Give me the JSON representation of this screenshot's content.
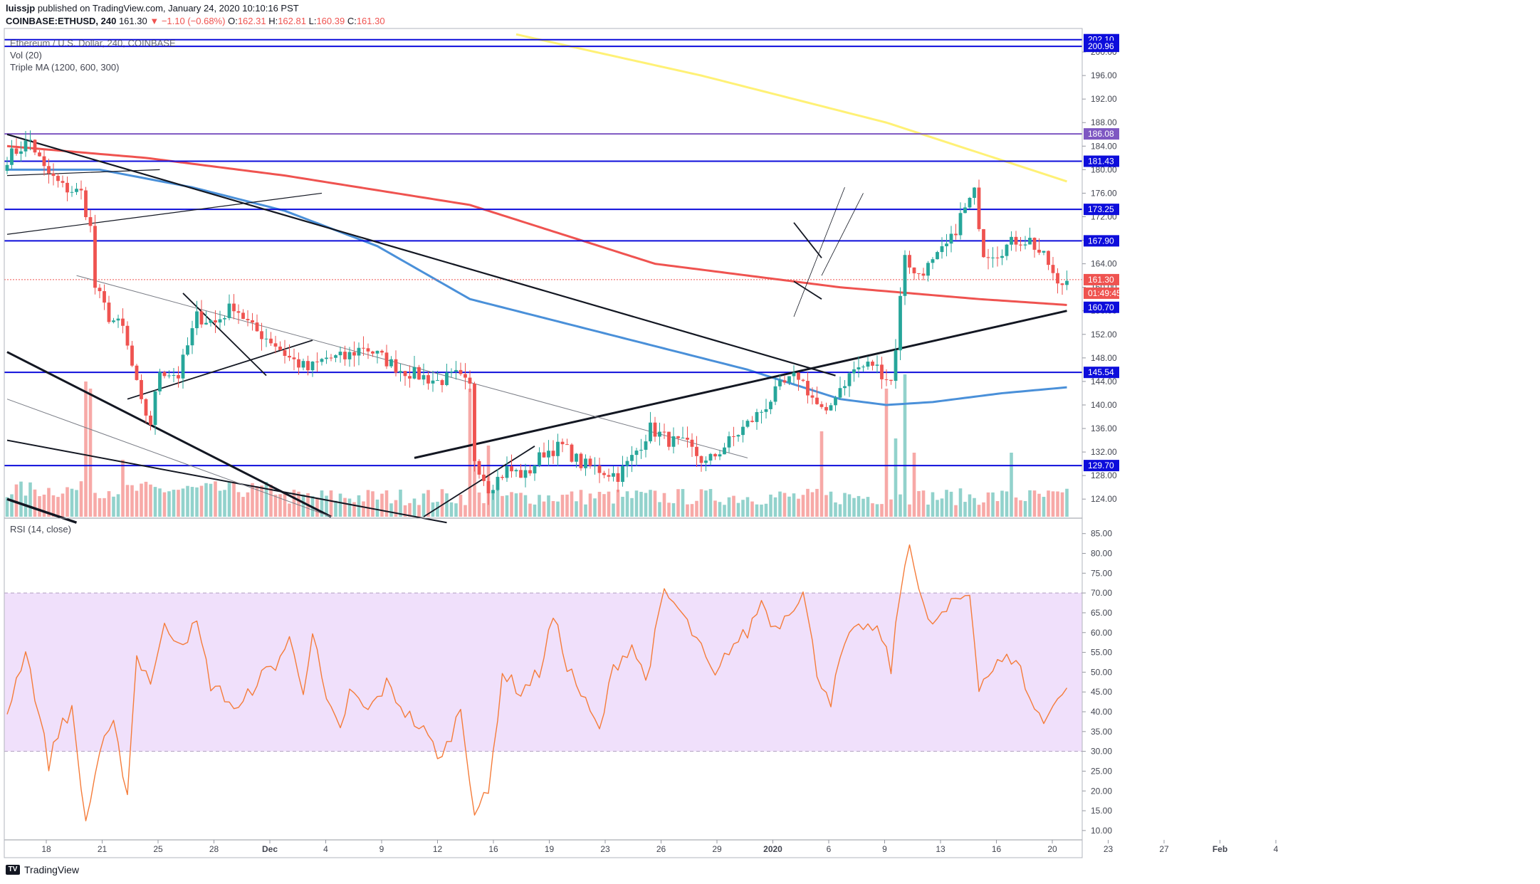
{
  "header": {
    "publisher": "luissjp",
    "published_text": "published on TradingView.com, January 24, 2020 10:10:16 PST",
    "symbol": "COINBASE:ETHUSD, 240",
    "price": "161.30",
    "change": "−1.10 (−0.68%)",
    "open_label": "O:",
    "open": "162.31",
    "high_label": "H:",
    "high": "162.81",
    "low_label": "L:",
    "low": "160.39",
    "close_label": "C:",
    "close": "161.30"
  },
  "legend": {
    "title": "Ethereum / U.S. Dollar, 240, COINBASE",
    "vol": "Vol (20)",
    "ma": "Triple MA (1200, 600, 300)"
  },
  "rsi": {
    "title": "RSI (14, close)"
  },
  "footer": {
    "brand": "TradingView"
  },
  "colors": {
    "up": "#26a69a",
    "down": "#ef5350",
    "hline": "#0d0ddb",
    "ma_slow": "#fff176",
    "ma_mid": "#ef5350",
    "ma_fast": "#4a90d9",
    "rsi": "#f57c3a",
    "rsi_band": "#f0e0fb"
  },
  "chart_data": [
    {
      "type": "candlestick",
      "title": "Ethereum / U.S. Dollar, 240, COINBASE",
      "x_ticks": [
        "18",
        "21",
        "25",
        "28",
        "Dec",
        "4",
        "9",
        "12",
        "16",
        "19",
        "23",
        "26",
        "29",
        "2020",
        "6",
        "9",
        "13",
        "16",
        "20",
        "23",
        "27",
        "Feb",
        "4"
      ],
      "y_ticks": [
        124,
        128,
        132,
        136,
        140,
        144,
        148,
        152,
        156,
        160,
        164,
        168,
        172,
        176,
        180,
        184,
        188,
        192,
        196,
        200
      ],
      "ylim": [
        121,
        204
      ],
      "price_tags": [
        {
          "value": "202.10",
          "level": 202.1,
          "color": "#0d0ddb"
        },
        {
          "value": "200.96",
          "level": 200.96,
          "color": "#0d0ddb"
        },
        {
          "value": "186.08",
          "level": 186.08,
          "color": "#7e57c2"
        },
        {
          "value": "181.43",
          "level": 181.43,
          "color": "#0d0ddb"
        },
        {
          "value": "173.25",
          "level": 173.25,
          "color": "#0d0ddb"
        },
        {
          "value": "167.90",
          "level": 167.9,
          "color": "#0d0ddb"
        },
        {
          "value": "161.30",
          "level": 161.3,
          "color": "#ef5350"
        },
        {
          "value": "01:49:45",
          "level": 159.0,
          "color": "#ef5350"
        },
        {
          "value": "160.70",
          "level": 156.6,
          "color": "#0d0ddb"
        },
        {
          "value": "145.54",
          "level": 145.54,
          "color": "#0d0ddb"
        },
        {
          "value": "129.70",
          "level": 129.7,
          "color": "#0d0ddb"
        }
      ],
      "horizontal_levels": [
        202.1,
        200.96,
        186.08,
        181.43,
        173.25,
        167.9,
        145.54,
        129.7
      ],
      "close_anchors": [
        [
          0,
          182
        ],
        [
          5,
          185
        ],
        [
          8,
          180
        ],
        [
          12,
          177
        ],
        [
          16,
          176
        ],
        [
          18,
          170
        ],
        [
          19,
          160
        ],
        [
          22,
          155
        ],
        [
          25,
          153
        ],
        [
          29,
          140
        ],
        [
          31,
          137
        ],
        [
          33,
          146
        ],
        [
          37,
          145
        ],
        [
          41,
          155
        ],
        [
          45,
          154
        ],
        [
          49,
          157
        ],
        [
          53,
          153
        ],
        [
          57,
          151
        ],
        [
          61,
          148
        ],
        [
          65,
          146
        ],
        [
          69,
          148
        ],
        [
          73,
          148
        ],
        [
          77,
          150
        ],
        [
          81,
          148
        ],
        [
          85,
          146
        ],
        [
          89,
          145
        ],
        [
          93,
          144
        ],
        [
          97,
          145
        ],
        [
          100,
          143
        ],
        [
          101,
          131
        ],
        [
          104,
          126
        ],
        [
          108,
          129
        ],
        [
          112,
          128
        ],
        [
          116,
          132
        ],
        [
          120,
          133
        ],
        [
          124,
          130
        ],
        [
          128,
          129
        ],
        [
          132,
          128
        ],
        [
          135,
          131
        ],
        [
          139,
          136
        ],
        [
          143,
          134
        ],
        [
          147,
          133
        ],
        [
          151,
          130
        ],
        [
          155,
          133
        ],
        [
          159,
          136
        ],
        [
          163,
          139
        ],
        [
          167,
          143
        ],
        [
          171,
          145
        ],
        [
          175,
          140
        ],
        [
          177,
          138
        ],
        [
          179,
          142
        ],
        [
          183,
          146
        ],
        [
          187,
          147
        ],
        [
          191,
          144
        ],
        [
          192,
          150
        ],
        [
          194,
          166
        ],
        [
          196,
          162
        ],
        [
          200,
          164
        ],
        [
          204,
          168
        ],
        [
          206,
          172
        ],
        [
          209,
          176
        ],
        [
          211,
          166
        ],
        [
          214,
          166
        ],
        [
          218,
          168
        ],
        [
          221,
          168
        ],
        [
          225,
          164
        ],
        [
          227,
          160
        ],
        [
          229,
          161.3
        ]
      ],
      "volume_ylim": [
        0,
        100
      ],
      "ma_series": [
        {
          "name": "MA 1200",
          "points": [
            [
              110,
              203
            ],
            [
              150,
              196
            ],
            [
              190,
              188
            ],
            [
              229,
              178
            ]
          ]
        },
        {
          "name": "MA 600",
          "points": [
            [
              0,
              184
            ],
            [
              30,
              182
            ],
            [
              60,
              179
            ],
            [
              100,
              174
            ],
            [
              140,
              164
            ],
            [
              180,
              160
            ],
            [
              210,
              158
            ],
            [
              229,
              157
            ]
          ]
        },
        {
          "name": "MA 300",
          "points": [
            [
              0,
              180
            ],
            [
              20,
              180
            ],
            [
              40,
              177
            ],
            [
              60,
              173
            ],
            [
              80,
              167
            ],
            [
              100,
              158
            ],
            [
              130,
              152
            ],
            [
              160,
              146
            ],
            [
              180,
              141
            ],
            [
              190,
              140
            ],
            [
              200,
              140.5
            ],
            [
              215,
              142
            ],
            [
              229,
              143
            ]
          ]
        }
      ]
    },
    {
      "type": "line",
      "title": "RSI (14, close)",
      "y_ticks": [
        10,
        15,
        20,
        25,
        30,
        35,
        40,
        45,
        50,
        55,
        60,
        65,
        70,
        75,
        80,
        85
      ],
      "ylim": [
        8,
        88
      ],
      "band": [
        30,
        70
      ],
      "anchors": [
        [
          0,
          40
        ],
        [
          4,
          56
        ],
        [
          9,
          27
        ],
        [
          12,
          38
        ],
        [
          14,
          40
        ],
        [
          17,
          12
        ],
        [
          20,
          30
        ],
        [
          23,
          36
        ],
        [
          26,
          20
        ],
        [
          28,
          54
        ],
        [
          31,
          48
        ],
        [
          34,
          61
        ],
        [
          38,
          58
        ],
        [
          41,
          62
        ],
        [
          44,
          47
        ],
        [
          47,
          44
        ],
        [
          50,
          40
        ],
        [
          54,
          48
        ],
        [
          58,
          52
        ],
        [
          61,
          58
        ],
        [
          64,
          46
        ],
        [
          66,
          60
        ],
        [
          69,
          42
        ],
        [
          72,
          35
        ],
        [
          74,
          45
        ],
        [
          78,
          40
        ],
        [
          82,
          47
        ],
        [
          86,
          40
        ],
        [
          90,
          35
        ],
        [
          94,
          28
        ],
        [
          98,
          41
        ],
        [
          101,
          15
        ],
        [
          104,
          19
        ],
        [
          107,
          50
        ],
        [
          111,
          45
        ],
        [
          115,
          50
        ],
        [
          118,
          64
        ],
        [
          121,
          52
        ],
        [
          125,
          42
        ],
        [
          128,
          35
        ],
        [
          131,
          51
        ],
        [
          135,
          57
        ],
        [
          138,
          48
        ],
        [
          142,
          70
        ],
        [
          145,
          66
        ],
        [
          149,
          58
        ],
        [
          153,
          48
        ],
        [
          156,
          56
        ],
        [
          160,
          60
        ],
        [
          163,
          68
        ],
        [
          166,
          61
        ],
        [
          169,
          66
        ],
        [
          172,
          70
        ],
        [
          175,
          50
        ],
        [
          178,
          43
        ],
        [
          181,
          57
        ],
        [
          185,
          62
        ],
        [
          189,
          59
        ],
        [
          191,
          51
        ],
        [
          193,
          70
        ],
        [
          195,
          84
        ],
        [
          197,
          71
        ],
        [
          199,
          62
        ],
        [
          202,
          64
        ],
        [
          205,
          68
        ],
        [
          208,
          70
        ],
        [
          210,
          47
        ],
        [
          214,
          52
        ],
        [
          218,
          54
        ],
        [
          221,
          43
        ],
        [
          224,
          37
        ],
        [
          226,
          43
        ],
        [
          229,
          45
        ]
      ]
    }
  ]
}
